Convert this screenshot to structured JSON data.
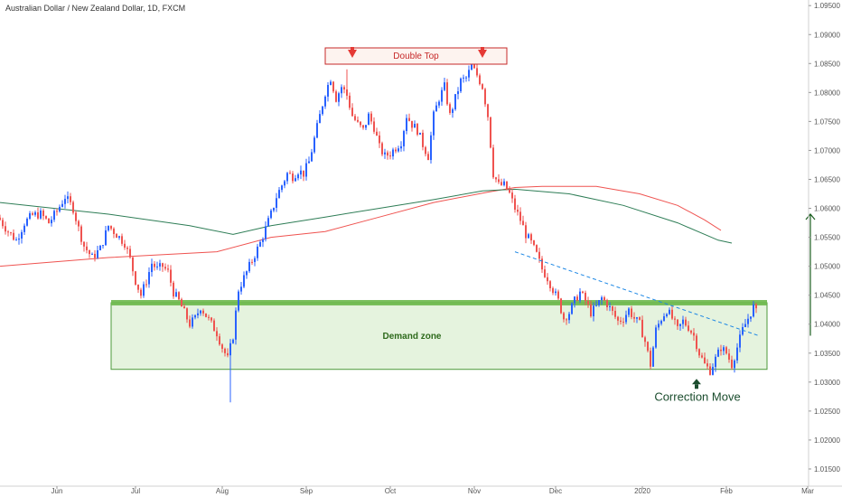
{
  "chart_data": {
    "type": "candlestick",
    "title": "Australian Dollar / New Zealand Dollar, 1D, FXCM",
    "xlabel": "",
    "ylabel": "",
    "ylim": [
      1.0125,
      1.0955
    ],
    "y_ticks": [
      "1.09500",
      "1.09000",
      "1.08500",
      "1.08000",
      "1.07500",
      "1.07000",
      "1.06500",
      "1.06000",
      "1.05500",
      "1.05000",
      "1.04500",
      "1.04000",
      "1.03500",
      "1.03000",
      "1.02500",
      "1.02000",
      "1.01500"
    ],
    "x_ticks": [
      "Jun",
      "Jul",
      "Aug",
      "Sep",
      "Oct",
      "Nov",
      "Dec",
      "2020",
      "Feb",
      "Mar"
    ],
    "up_color": "#2962ff",
    "down_color": "#ef5350",
    "price_path": [
      [
        0,
        1.058
      ],
      [
        3,
        1.056
      ],
      [
        6,
        1.0545
      ],
      [
        9,
        1.0575
      ],
      [
        12,
        1.0588
      ],
      [
        15,
        1.059
      ],
      [
        18,
        1.0575
      ],
      [
        21,
        1.0595
      ],
      [
        24,
        1.062
      ],
      [
        27,
        1.06
      ],
      [
        29,
        1.0565
      ],
      [
        31,
        1.0535
      ],
      [
        34,
        1.0515
      ],
      [
        37,
        1.053
      ],
      [
        40,
        1.057
      ],
      [
        43,
        1.0555
      ],
      [
        46,
        1.054
      ],
      [
        48,
        1.0512
      ],
      [
        50,
        1.0475
      ],
      [
        52,
        1.045
      ],
      [
        54,
        1.0475
      ],
      [
        56,
        1.0505
      ],
      [
        58,
        1.0495
      ],
      [
        60,
        1.05
      ],
      [
        62,
        1.049
      ],
      [
        64,
        1.0455
      ],
      [
        66,
        1.044
      ],
      [
        68,
        1.042
      ],
      [
        70,
        1.04
      ],
      [
        72,
        1.041
      ],
      [
        74,
        1.043
      ],
      [
        76,
        1.0415
      ],
      [
        78,
        1.04
      ],
      [
        80,
        1.0385
      ],
      [
        82,
        1.036
      ],
      [
        84,
        1.034
      ],
      [
        86,
        1.038
      ],
      [
        88,
        1.046
      ],
      [
        90,
        1.048
      ],
      [
        92,
        1.05
      ],
      [
        94,
        1.052
      ],
      [
        96,
        1.054
      ],
      [
        98,
        1.0565
      ],
      [
        100,
        1.059
      ],
      [
        102,
        1.062
      ],
      [
        104,
        1.064
      ],
      [
        106,
        1.066
      ],
      [
        108,
        1.0655
      ],
      [
        110,
        1.0665
      ],
      [
        112,
        1.066
      ],
      [
        114,
        1.068
      ],
      [
        116,
        1.072
      ],
      [
        118,
        1.076
      ],
      [
        120,
        1.08
      ],
      [
        122,
        1.0825
      ],
      [
        124,
        1.079
      ],
      [
        126,
        1.081
      ],
      [
        128,
        1.0795
      ],
      [
        130,
        1.076
      ],
      [
        132,
        1.0745
      ],
      [
        134,
        1.0735
      ],
      [
        136,
        1.076
      ],
      [
        138,
        1.074
      ],
      [
        140,
        1.0705
      ],
      [
        142,
        1.069
      ],
      [
        144,
        1.0695
      ],
      [
        146,
        1.0705
      ],
      [
        148,
        1.0715
      ],
      [
        150,
        1.076
      ],
      [
        152,
        1.0745
      ],
      [
        154,
        1.0735
      ],
      [
        156,
        1.071
      ],
      [
        158,
        1.069
      ],
      [
        160,
        1.076
      ],
      [
        162,
        1.079
      ],
      [
        164,
        1.081
      ],
      [
        166,
        1.076
      ],
      [
        168,
        1.079
      ],
      [
        170,
        1.082
      ],
      [
        172,
        1.0825
      ],
      [
        174,
        1.0845
      ],
      [
        176,
        1.083
      ],
      [
        178,
        1.081
      ],
      [
        180,
        1.076
      ],
      [
        182,
        1.066
      ],
      [
        184,
        1.064
      ],
      [
        186,
        1.064
      ],
      [
        188,
        1.0625
      ],
      [
        190,
        1.06
      ],
      [
        192,
        1.058
      ],
      [
        194,
        1.0555
      ],
      [
        196,
        1.054
      ],
      [
        198,
        1.052
      ],
      [
        200,
        1.0495
      ],
      [
        202,
        1.048
      ],
      [
        204,
        1.046
      ],
      [
        206,
        1.044
      ],
      [
        208,
        1.041
      ],
      [
        210,
        1.042
      ],
      [
        212,
        1.044
      ],
      [
        214,
        1.0455
      ],
      [
        216,
        1.044
      ],
      [
        218,
        1.042
      ],
      [
        220,
        1.043
      ],
      [
        222,
        1.0445
      ],
      [
        224,
        1.0435
      ],
      [
        226,
        1.042
      ],
      [
        228,
        1.0405
      ],
      [
        230,
        1.041
      ],
      [
        232,
        1.0425
      ],
      [
        234,
        1.041
      ],
      [
        236,
        1.04
      ],
      [
        238,
        1.037
      ],
      [
        240,
        1.033
      ],
      [
        242,
        1.039
      ],
      [
        244,
        1.041
      ],
      [
        246,
        1.0425
      ],
      [
        248,
        1.041
      ],
      [
        250,
        1.039
      ],
      [
        252,
        1.0405
      ],
      [
        254,
        1.0395
      ],
      [
        256,
        1.038
      ],
      [
        258,
        1.035
      ],
      [
        260,
        1.033
      ],
      [
        262,
        1.032
      ],
      [
        264,
        1.034
      ],
      [
        266,
        1.036
      ],
      [
        268,
        1.035
      ],
      [
        270,
        1.033
      ],
      [
        272,
        1.036
      ],
      [
        274,
        1.039
      ],
      [
        276,
        1.041
      ],
      [
        278,
        1.043
      ],
      [
        279,
        1.042
      ]
    ],
    "wick_extremes": {
      "low_aug": 1.0265,
      "high_oct": 1.084,
      "high_nov": 1.085
    },
    "series": [
      {
        "color": "#ef5350",
        "points": [
          [
            0,
            1.05
          ],
          [
            40,
            1.0515
          ],
          [
            80,
            1.0525
          ],
          [
            100,
            1.055
          ],
          [
            120,
            1.056
          ],
          [
            140,
            1.0585
          ],
          [
            160,
            1.061
          ],
          [
            180,
            1.0628
          ],
          [
            190,
            1.0636
          ],
          [
            200,
            1.0638
          ],
          [
            220,
            1.0638
          ],
          [
            236,
            1.0625
          ],
          [
            250,
            1.0605
          ],
          [
            260,
            1.058
          ],
          [
            266,
            1.0562
          ]
        ]
      },
      {
        "color": "#2e7d56",
        "points": [
          [
            0,
            1.061
          ],
          [
            40,
            1.059
          ],
          [
            70,
            1.057
          ],
          [
            86,
            1.0555
          ],
          [
            100,
            1.057
          ],
          [
            120,
            1.0585
          ],
          [
            140,
            1.06
          ],
          [
            160,
            1.0615
          ],
          [
            178,
            1.063
          ],
          [
            190,
            1.0633
          ],
          [
            210,
            1.0625
          ],
          [
            230,
            1.0605
          ],
          [
            250,
            1.0575
          ],
          [
            265,
            1.0545
          ],
          [
            270,
            1.054
          ]
        ]
      }
    ],
    "zone": {
      "label": "Demand zone",
      "top": 1.0437,
      "bottom": 1.0322,
      "line_value": 1.0437,
      "day_start": 41,
      "day_end": 283
    },
    "double_top": {
      "label": "Double Top",
      "day_start": 120,
      "day_end": 187,
      "marker_days": [
        130,
        178
      ]
    },
    "trendline": {
      "points": [
        [
          190,
          1.0525
        ],
        [
          280,
          1.038
        ]
      ]
    },
    "target_arrow": {
      "day": 279,
      "from": 1.038,
      "to": 1.059
    },
    "correction": {
      "label": "Correction Move",
      "day": 257,
      "value": 1.0318
    },
    "annotation_colors": {
      "zone_fill": "#e5f3de",
      "zone_border": "#4c9a3a",
      "zone_line": "#6cb84b",
      "text_green": "#2e6a1c",
      "double_top_text": "#c62828",
      "double_top_bg": "#fdf3ef",
      "double_top_border": "#c62828",
      "arrow_red": "#e53935",
      "arrow_green": "#1b5e20",
      "trendline_color": "#1e88e5",
      "correction_color": "#1b4d2e"
    }
  }
}
